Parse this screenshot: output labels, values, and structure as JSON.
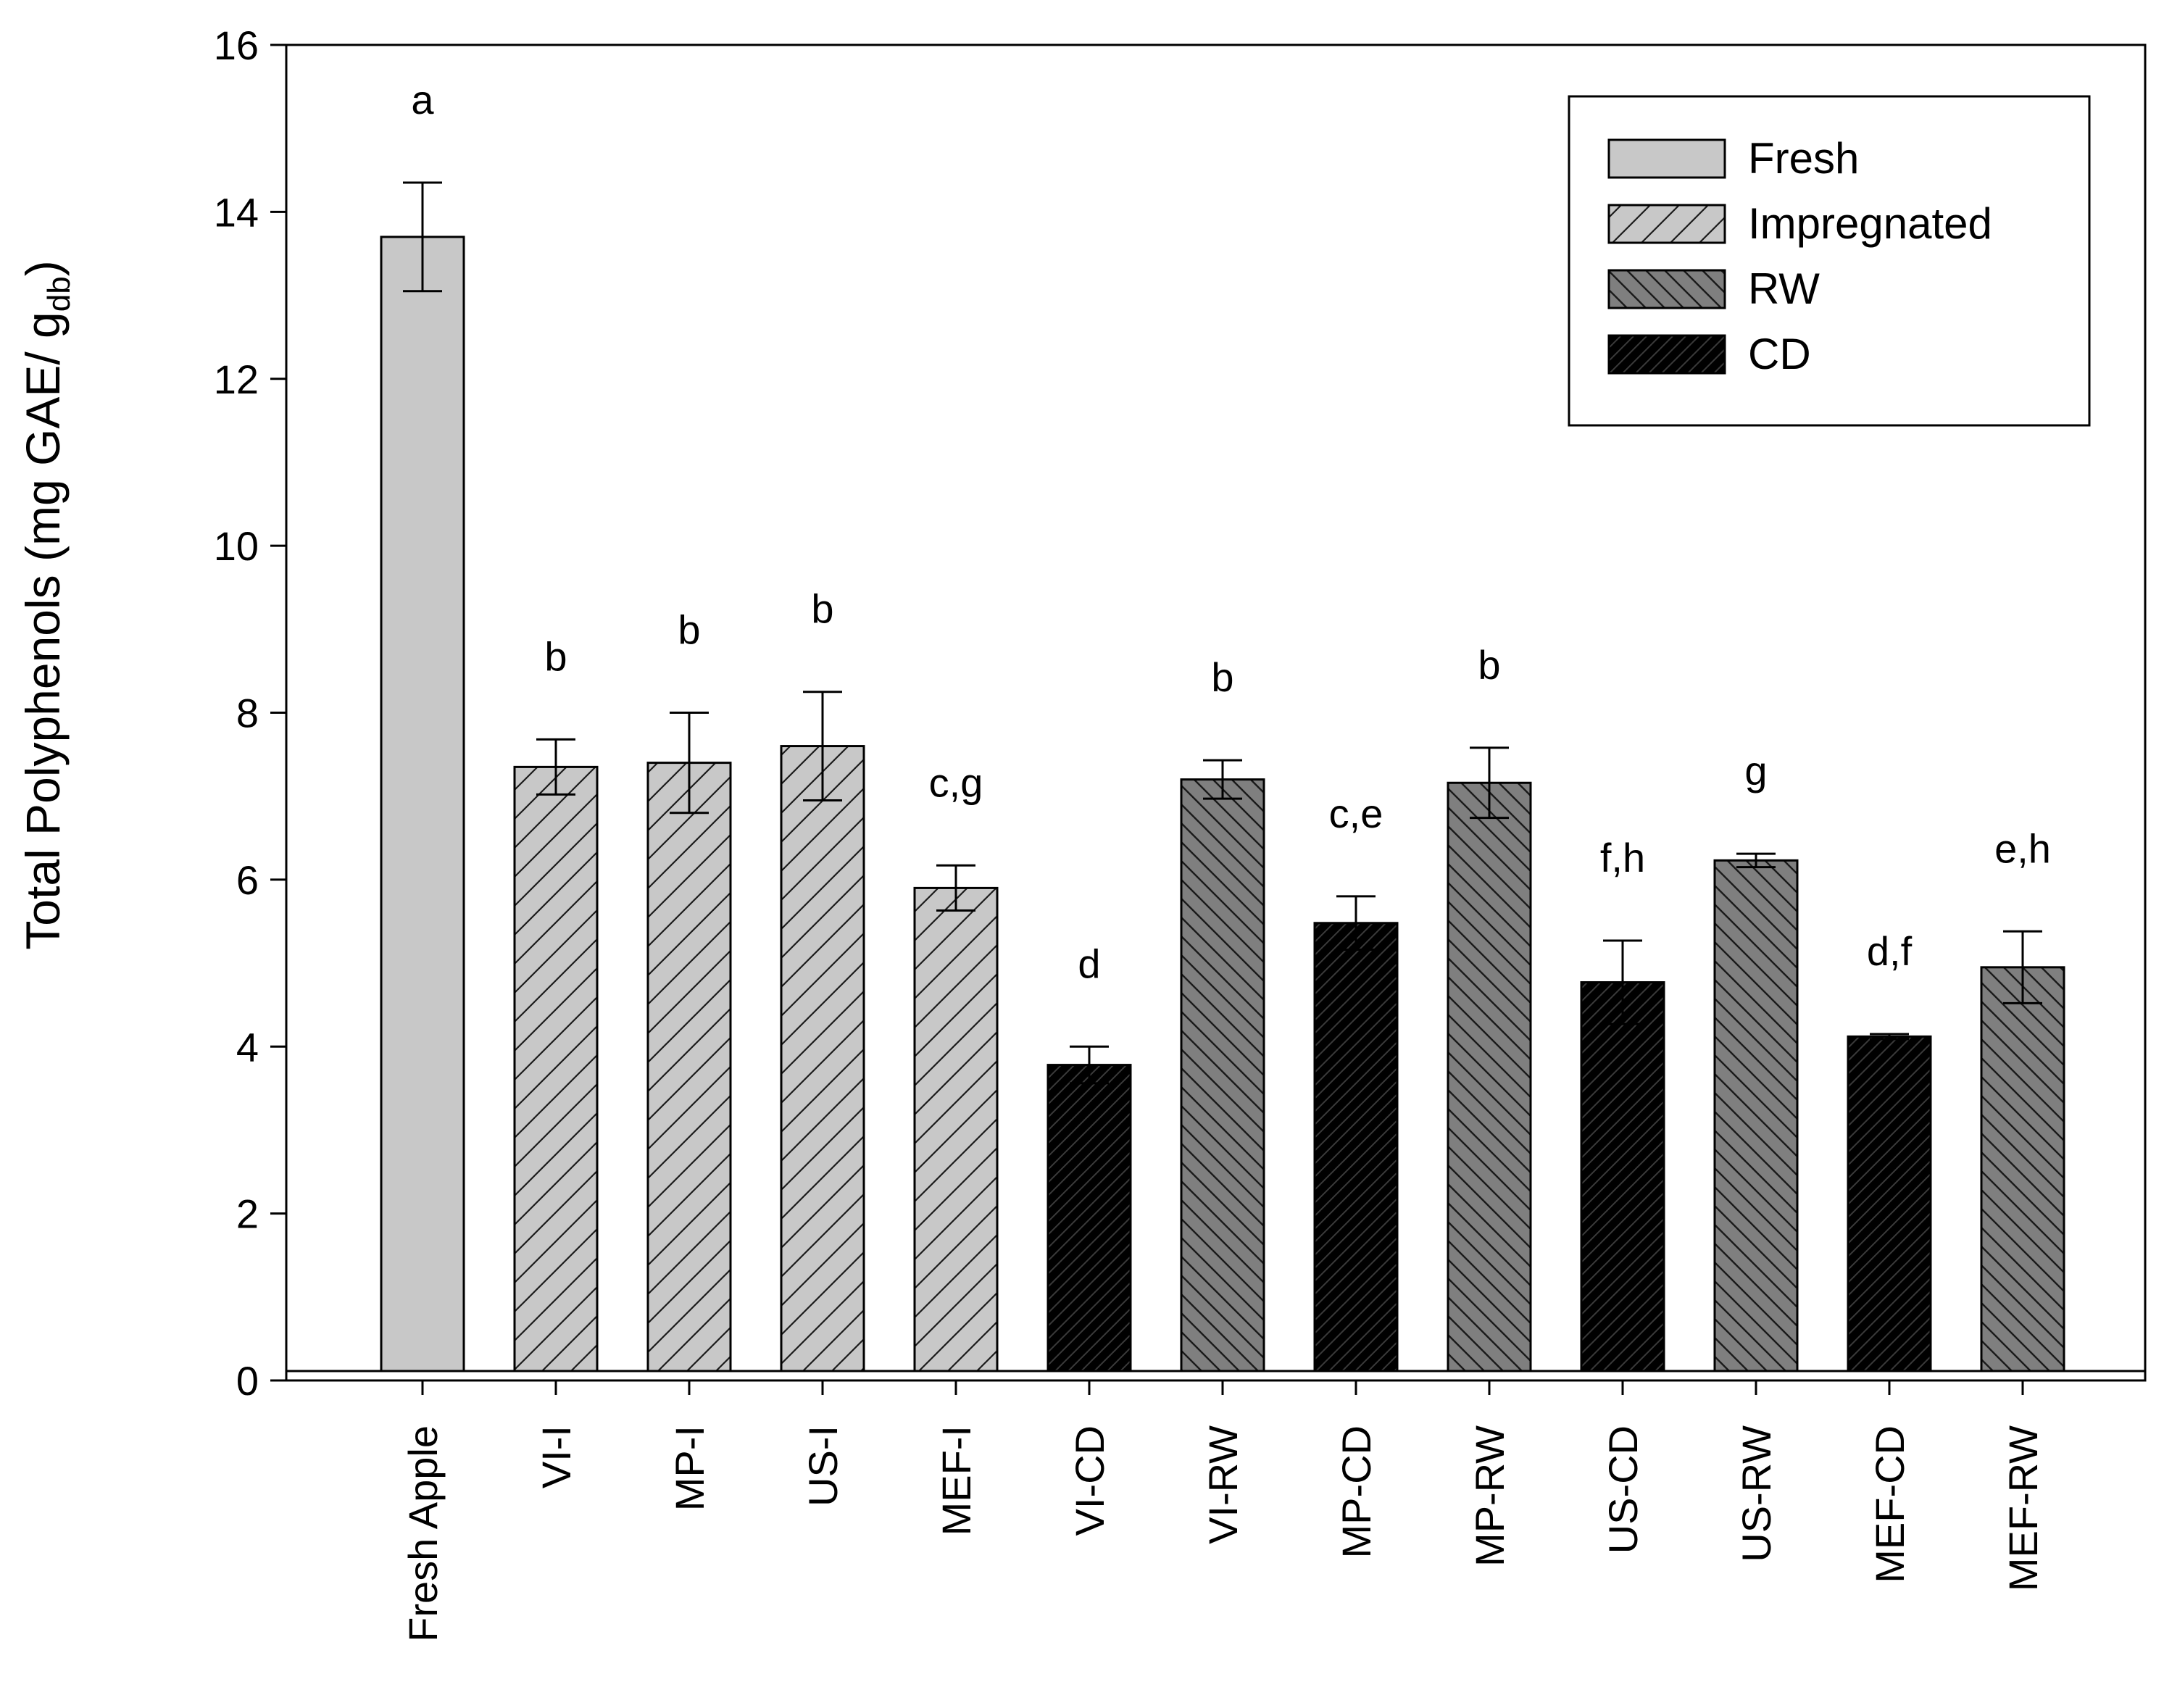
{
  "chart_data": {
    "type": "bar",
    "title": "",
    "xlabel": "",
    "ylabel": {
      "main": "Total Polyphenols (mg GAE/ g",
      "subscript": "db",
      "close": ")"
    },
    "ylim": [
      0,
      16
    ],
    "yticks": [
      0,
      2,
      4,
      6,
      8,
      10,
      12,
      14,
      16
    ],
    "grid": false,
    "legend_position": "top-right",
    "legend": [
      {
        "key": "fresh",
        "label": "Fresh",
        "color": "#c8c8c8",
        "pattern": "none"
      },
      {
        "key": "impregnated",
        "label": "Impregnated",
        "color": "#c8c8c8",
        "pattern": "forward-diagonal"
      },
      {
        "key": "rw",
        "label": "RW",
        "color": "#7f7f7f",
        "pattern": "back-diagonal"
      },
      {
        "key": "cd",
        "label": "CD",
        "color": "#000000",
        "pattern": "dense-diagonal"
      }
    ],
    "bars": [
      {
        "category": "Fresh Apple",
        "value": 13.7,
        "error": 0.65,
        "group": "fresh",
        "letter": "a"
      },
      {
        "category": "VI-I",
        "value": 7.35,
        "error": 0.33,
        "group": "impregnated",
        "letter": "b"
      },
      {
        "category": "MP-I",
        "value": 7.4,
        "error": 0.6,
        "group": "impregnated",
        "letter": "b"
      },
      {
        "category": "US-I",
        "value": 7.6,
        "error": 0.65,
        "group": "impregnated",
        "letter": "b"
      },
      {
        "category": "MEF-I",
        "value": 5.9,
        "error": 0.27,
        "group": "impregnated",
        "letter": "c,g"
      },
      {
        "category": "VI-CD",
        "value": 3.78,
        "error": 0.22,
        "group": "cd",
        "letter": "d"
      },
      {
        "category": "VI-RW",
        "value": 7.2,
        "error": 0.23,
        "group": "rw",
        "letter": "b"
      },
      {
        "category": "MP-CD",
        "value": 5.48,
        "error": 0.32,
        "group": "cd",
        "letter": "c,e"
      },
      {
        "category": "MP-RW",
        "value": 7.16,
        "error": 0.42,
        "group": "rw",
        "letter": "b"
      },
      {
        "category": "US-CD",
        "value": 4.77,
        "error": 0.5,
        "group": "cd",
        "letter": "f,h"
      },
      {
        "category": "US-RW",
        "value": 6.23,
        "error": 0.08,
        "group": "rw",
        "letter": "g"
      },
      {
        "category": "MEF-CD",
        "value": 4.12,
        "error": 0.03,
        "group": "cd",
        "letter": "d,f"
      },
      {
        "category": "MEF-RW",
        "value": 4.95,
        "error": 0.43,
        "group": "rw",
        "letter": "e,h"
      }
    ]
  }
}
